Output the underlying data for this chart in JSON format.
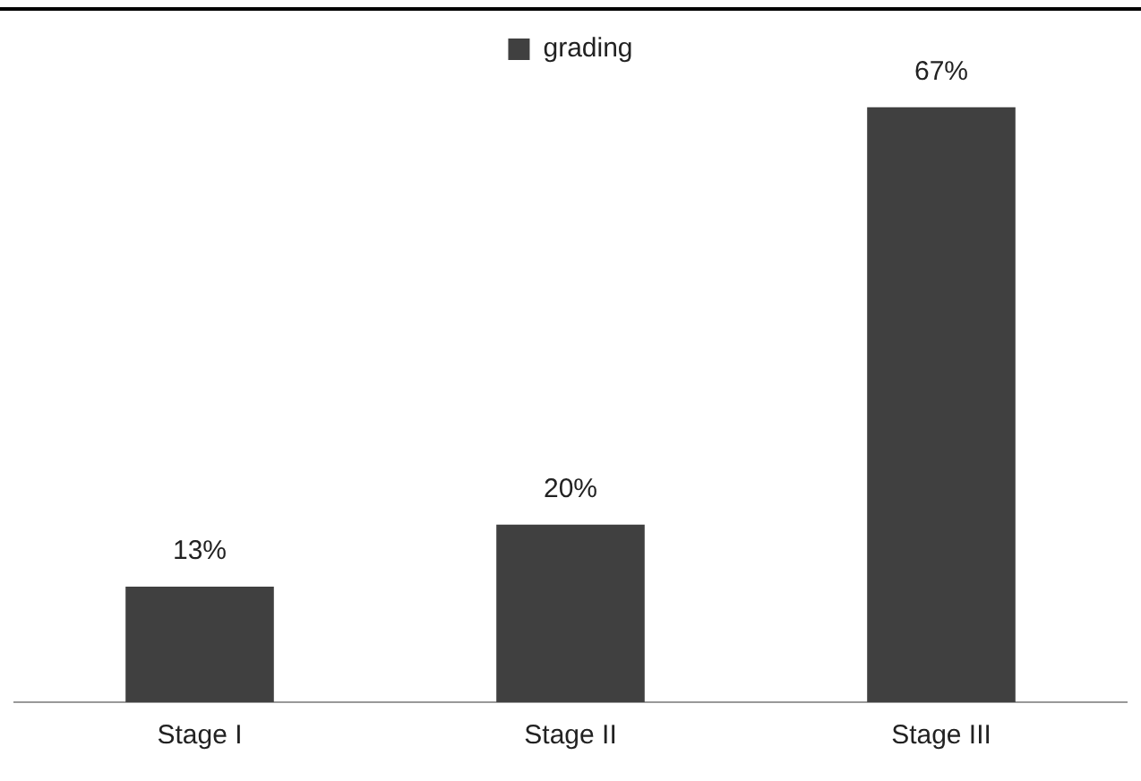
{
  "chart_data": {
    "type": "bar",
    "categories": [
      "Stage I",
      "Stage II",
      "Stage III"
    ],
    "series": [
      {
        "name": "grading",
        "color": "#404040",
        "values": [
          13,
          20,
          67
        ],
        "value_labels": [
          "13%",
          "20%",
          "67%"
        ]
      }
    ],
    "tick_labels": "x",
    "legend": "top",
    "grid": false
  }
}
